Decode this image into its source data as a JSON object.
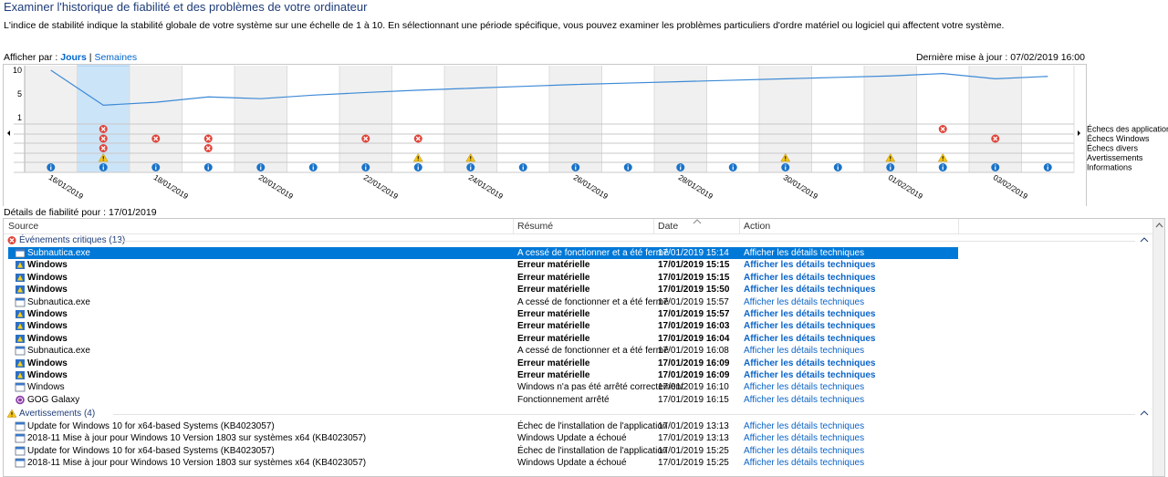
{
  "header": {
    "title": "Examiner l'historique de fiabilité et des problèmes de votre ordinateur",
    "description": "L'indice de stabilité indique la stabilité globale de votre système sur une échelle de 1 à 10. En sélectionnant une période spécifique, vous pouvez examiner les problèmes particuliers d'ordre matériel ou logiciel qui affectent votre système."
  },
  "view": {
    "label": "Afficher par :",
    "days": "Jours",
    "separator": "|",
    "weeks": "Semaines"
  },
  "last_update": "Dernière mise à jour : 07/02/2019 16:00",
  "stability_chart": {
    "yticks": [
      1,
      5,
      10
    ],
    "index_values": [
      10,
      3.1,
      3.6,
      4.5,
      4.2,
      4.8,
      5.3,
      5.8,
      6.2,
      6.6,
      7.0,
      7.3,
      7.6,
      7.9,
      8.2,
      8.5,
      8.8,
      9.3,
      8.2,
      8.7
    ],
    "selected_column": 1,
    "date_labels": [
      "16/01/2019",
      "18/01/2019",
      "20/01/2019",
      "22/01/2019",
      "24/01/2019",
      "26/01/2019",
      "28/01/2019",
      "30/01/2019",
      "01/02/2019",
      "03/02/2019"
    ],
    "rows": [
      {
        "label": "Échecs des applications",
        "icon": "error",
        "columns": [
          1,
          17
        ]
      },
      {
        "label": "Échecs Windows",
        "icon": "error",
        "columns": [
          1,
          2,
          3,
          6,
          7,
          18
        ]
      },
      {
        "label": "Échecs divers",
        "icon": "error",
        "columns": [
          1,
          3
        ]
      },
      {
        "label": "Avertissements",
        "icon": "warning",
        "columns": [
          1,
          7,
          8,
          14,
          16,
          17
        ]
      },
      {
        "label": "Informations",
        "icon": "info",
        "columns": [
          0,
          1,
          2,
          3,
          4,
          5,
          6,
          7,
          8,
          9,
          10,
          11,
          12,
          13,
          14,
          15,
          16,
          17,
          18,
          19
        ]
      }
    ]
  },
  "details_label": "Détails de fiabilité pour : 17/01/2019",
  "table": {
    "columns": [
      "Source",
      "Résumé",
      "Date",
      "Action"
    ],
    "groups": [
      {
        "title": "Événements critiques (13)",
        "icon": "error",
        "rows": [
          {
            "source": "Subnautica.exe",
            "summary": "A cessé de fonctionner et a été fermé",
            "date": "17/01/2019 15:14",
            "action": "Afficher les détails techniques",
            "icon": "app",
            "bold": false,
            "selected": true
          },
          {
            "source": "Windows",
            "summary": "Erreur matérielle",
            "date": "17/01/2019 15:15",
            "action": "Afficher les détails techniques",
            "icon": "windows",
            "bold": true,
            "selected": false
          },
          {
            "source": "Windows",
            "summary": "Erreur matérielle",
            "date": "17/01/2019 15:15",
            "action": "Afficher les détails techniques",
            "icon": "windows",
            "bold": true,
            "selected": false
          },
          {
            "source": "Windows",
            "summary": "Erreur matérielle",
            "date": "17/01/2019 15:50",
            "action": "Afficher les détails techniques",
            "icon": "windows",
            "bold": true,
            "selected": false
          },
          {
            "source": "Subnautica.exe",
            "summary": "A cessé de fonctionner et a été fermé",
            "date": "17/01/2019 15:57",
            "action": "Afficher les détails techniques",
            "icon": "app",
            "bold": false,
            "selected": false
          },
          {
            "source": "Windows",
            "summary": "Erreur matérielle",
            "date": "17/01/2019 15:57",
            "action": "Afficher les détails techniques",
            "icon": "windows",
            "bold": true,
            "selected": false
          },
          {
            "source": "Windows",
            "summary": "Erreur matérielle",
            "date": "17/01/2019 16:03",
            "action": "Afficher les détails techniques",
            "icon": "windows",
            "bold": true,
            "selected": false
          },
          {
            "source": "Windows",
            "summary": "Erreur matérielle",
            "date": "17/01/2019 16:04",
            "action": "Afficher les détails techniques",
            "icon": "windows",
            "bold": true,
            "selected": false
          },
          {
            "source": "Subnautica.exe",
            "summary": "A cessé de fonctionner et a été fermé",
            "date": "17/01/2019 16:08",
            "action": "Afficher les détails techniques",
            "icon": "app",
            "bold": false,
            "selected": false
          },
          {
            "source": "Windows",
            "summary": "Erreur matérielle",
            "date": "17/01/2019 16:09",
            "action": "Afficher les détails techniques",
            "icon": "windows",
            "bold": true,
            "selected": false
          },
          {
            "source": "Windows",
            "summary": "Erreur matérielle",
            "date": "17/01/2019 16:09",
            "action": "Afficher les détails techniques",
            "icon": "windows",
            "bold": true,
            "selected": false
          },
          {
            "source": "Windows",
            "summary": "Windows n'a pas été arrêté correctement",
            "date": "17/01/2019 16:10",
            "action": "Afficher les détails techniques",
            "icon": "app",
            "bold": false,
            "selected": false
          },
          {
            "source": "GOG Galaxy",
            "summary": "Fonctionnement arrêté",
            "date": "17/01/2019 16:15",
            "action": "Afficher les détails techniques",
            "icon": "gog",
            "bold": false,
            "selected": false
          }
        ]
      },
      {
        "title": "Avertissements (4)",
        "icon": "warning",
        "rows": [
          {
            "source": "Update for Windows 10 for x64-based Systems (KB4023057)",
            "summary": "Échec de l'installation de l'application",
            "date": "17/01/2019 13:13",
            "action": "Afficher les détails techniques",
            "icon": "app",
            "bold": false,
            "selected": false
          },
          {
            "source": "2018-11 Mise à jour pour Windows 10 Version 1803 sur systèmes x64 (KB4023057)",
            "summary": "Windows Update a échoué",
            "date": "17/01/2019 13:13",
            "action": "Afficher les détails techniques",
            "icon": "app",
            "bold": false,
            "selected": false
          },
          {
            "source": "Update for Windows 10 for x64-based Systems (KB4023057)",
            "summary": "Échec de l'installation de l'application",
            "date": "17/01/2019 15:25",
            "action": "Afficher les détails techniques",
            "icon": "app",
            "bold": false,
            "selected": false
          },
          {
            "source": "2018-11 Mise à jour pour Windows 10 Version 1803 sur systèmes x64 (KB4023057)",
            "summary": "Windows Update a échoué",
            "date": "17/01/2019 15:25",
            "action": "Afficher les détails techniques",
            "icon": "app",
            "bold": false,
            "selected": false
          }
        ]
      }
    ]
  }
}
